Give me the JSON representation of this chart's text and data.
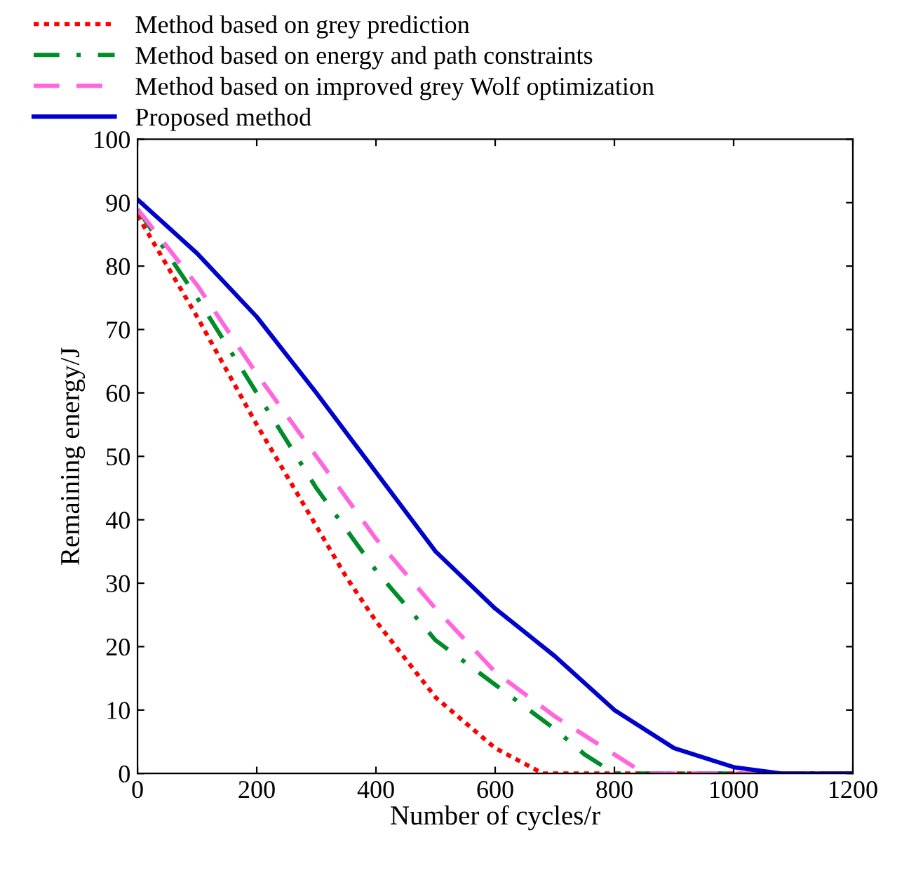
{
  "chart_data": {
    "type": "line",
    "xlabel": "Number of cycles/r",
    "ylabel": "Remaining energy/J",
    "xlim": [
      0,
      1200
    ],
    "ylim": [
      0,
      100
    ],
    "xticks": [
      0,
      200,
      400,
      600,
      800,
      1000,
      1200
    ],
    "yticks": [
      0,
      10,
      20,
      30,
      40,
      50,
      60,
      70,
      80,
      90,
      100
    ],
    "grid": false,
    "legend": "top left",
    "marker": "none",
    "series": [
      {
        "name": "Method based on grey prediction",
        "color": "#ff0000",
        "line_style": "dotted",
        "x": [
          0,
          100,
          200,
          300,
          350,
          400,
          500,
          600,
          680,
          1200
        ],
        "values": [
          88,
          72,
          55,
          39,
          31,
          24,
          12,
          4,
          0,
          0
        ]
      },
      {
        "name": "Method based on energy and path constraints",
        "color": "#008c2a",
        "line_style": "dashdot",
        "x": [
          0,
          100,
          200,
          300,
          400,
          500,
          600,
          700,
          750,
          800,
          1200
        ],
        "values": [
          89,
          75,
          60,
          45,
          32,
          21,
          14,
          7,
          3,
          0,
          0
        ]
      },
      {
        "name": "Method based on improved grey Wolf optimization",
        "color": "#ff66dd",
        "line_style": "dashed",
        "x": [
          0,
          100,
          200,
          300,
          400,
          500,
          600,
          700,
          800,
          850,
          1200
        ],
        "values": [
          89,
          77,
          63,
          50,
          37,
          26,
          16,
          9,
          3,
          0,
          0
        ]
      },
      {
        "name": "Proposed method",
        "color": "#0000cc",
        "line_style": "solid",
        "x": [
          0,
          100,
          200,
          300,
          400,
          500,
          600,
          700,
          800,
          900,
          1000,
          1080,
          1200
        ],
        "values": [
          90.5,
          82,
          72,
          60,
          47.5,
          35,
          26,
          18.5,
          10,
          4,
          1,
          0,
          0
        ]
      }
    ]
  }
}
